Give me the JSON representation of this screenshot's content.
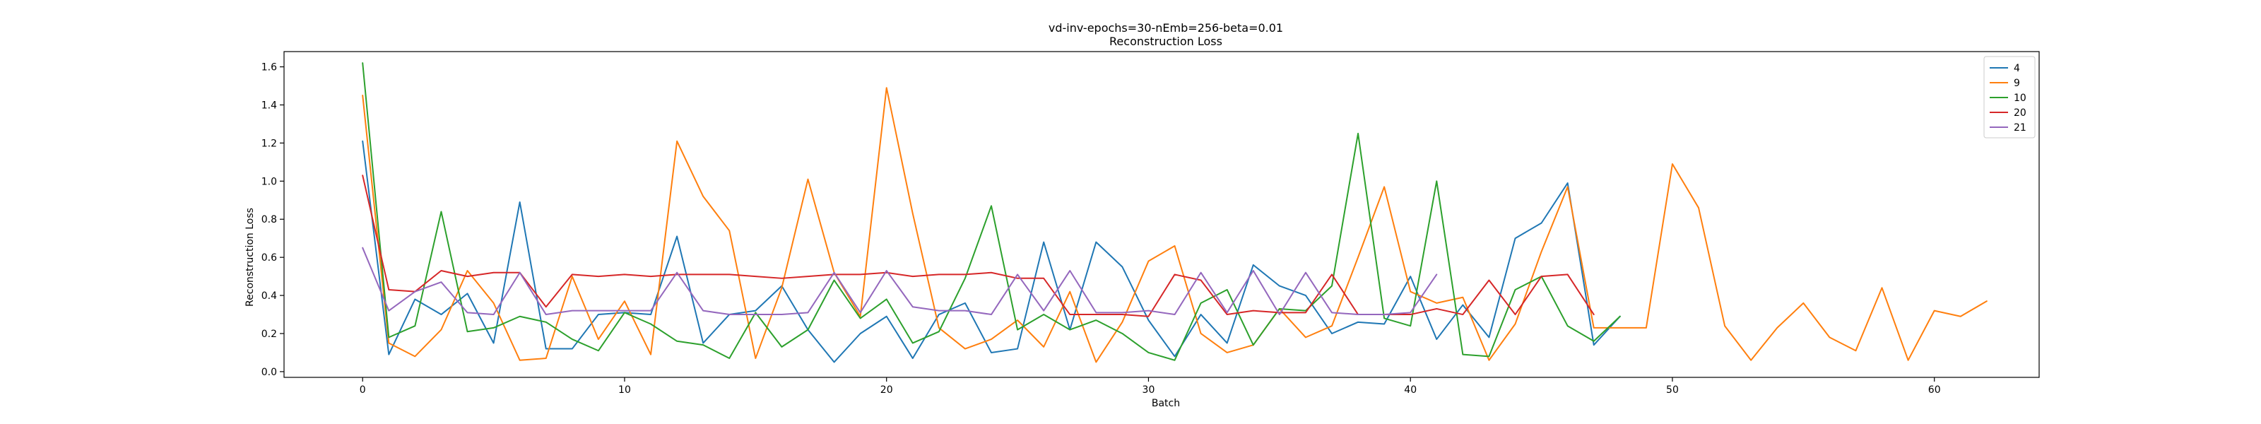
{
  "chart_data": {
    "type": "line",
    "title": "vd-inv-epochs=30-nEmb=256-beta=0.01",
    "subtitle": "Reconstruction Loss",
    "xlabel": "Batch",
    "ylabel": "Reconstruction Loss",
    "xlim": [
      -3,
      64
    ],
    "ylim": [
      -0.03,
      1.68
    ],
    "xticks": [
      0,
      10,
      20,
      30,
      40,
      50,
      60
    ],
    "yticks": [
      0.0,
      0.2,
      0.4,
      0.6,
      0.8,
      1.0,
      1.2,
      1.4,
      1.6
    ],
    "grid": false,
    "legend_position": "top-right",
    "series": [
      {
        "name": "4",
        "color": "#1f77b4",
        "values": [
          1.21,
          0.09,
          0.38,
          0.3,
          0.41,
          0.15,
          0.89,
          0.12,
          0.12,
          0.3,
          0.31,
          0.3,
          0.71,
          0.15,
          0.3,
          0.32,
          0.45,
          0.22,
          0.05,
          0.2,
          0.29,
          0.07,
          0.3,
          0.36,
          0.1,
          0.12,
          0.68,
          0.22,
          0.68,
          0.55,
          0.27,
          0.08,
          0.3,
          0.15,
          0.56,
          0.45,
          0.4,
          0.2,
          0.26,
          0.25,
          0.5,
          0.17,
          0.35,
          0.18,
          0.7,
          0.78,
          0.99,
          0.14,
          0.29
        ]
      },
      {
        "name": "9",
        "color": "#ff7f0e",
        "values": [
          1.45,
          0.15,
          0.08,
          0.22,
          0.53,
          0.36,
          0.06,
          0.07,
          0.5,
          0.17,
          0.37,
          0.09,
          1.21,
          0.92,
          0.74,
          0.07,
          0.44,
          1.01,
          0.52,
          0.29,
          1.49,
          0.83,
          0.23,
          0.12,
          0.17,
          0.27,
          0.13,
          0.42,
          0.05,
          0.26,
          0.58,
          0.66,
          0.2,
          0.1,
          0.14,
          0.33,
          0.18,
          0.24,
          0.6,
          0.97,
          0.42,
          0.36,
          0.39,
          0.06,
          0.25,
          0.63,
          0.97,
          0.23,
          0.23,
          0.23,
          1.09,
          0.86,
          0.24,
          0.06,
          0.23,
          0.36,
          0.18,
          0.11,
          0.44,
          0.06,
          0.32,
          0.29,
          0.37
        ]
      },
      {
        "name": "10",
        "color": "#2ca02c",
        "values": [
          1.62,
          0.18,
          0.24,
          0.84,
          0.21,
          0.23,
          0.29,
          0.26,
          0.17,
          0.11,
          0.31,
          0.25,
          0.16,
          0.14,
          0.07,
          0.31,
          0.13,
          0.22,
          0.48,
          0.28,
          0.38,
          0.15,
          0.21,
          0.49,
          0.87,
          0.22,
          0.3,
          0.22,
          0.27,
          0.2,
          0.1,
          0.06,
          0.36,
          0.43,
          0.14,
          0.33,
          0.32,
          0.45,
          1.25,
          0.28,
          0.24,
          1.0,
          0.09,
          0.08,
          0.43,
          0.5,
          0.24,
          0.16,
          0.29
        ]
      },
      {
        "name": "20",
        "color": "#d62728",
        "values": [
          1.03,
          0.43,
          0.42,
          0.53,
          0.5,
          0.52,
          0.52,
          0.34,
          0.51,
          0.5,
          0.51,
          0.5,
          0.51,
          0.51,
          0.51,
          0.5,
          0.49,
          0.5,
          0.51,
          0.51,
          0.52,
          0.5,
          0.51,
          0.51,
          0.52,
          0.49,
          0.49,
          0.3,
          0.3,
          0.3,
          0.29,
          0.51,
          0.48,
          0.3,
          0.32,
          0.31,
          0.31,
          0.51,
          0.3,
          0.3,
          0.3,
          0.33,
          0.3,
          0.48,
          0.3,
          0.5,
          0.51,
          0.3
        ]
      },
      {
        "name": "21",
        "color": "#9467bd",
        "values": [
          0.65,
          0.32,
          0.42,
          0.47,
          0.31,
          0.3,
          0.52,
          0.3,
          0.32,
          0.32,
          0.32,
          0.32,
          0.52,
          0.32,
          0.3,
          0.3,
          0.3,
          0.31,
          0.52,
          0.31,
          0.53,
          0.34,
          0.32,
          0.32,
          0.3,
          0.51,
          0.32,
          0.53,
          0.31,
          0.31,
          0.32,
          0.3,
          0.52,
          0.31,
          0.53,
          0.3,
          0.52,
          0.31,
          0.3,
          0.3,
          0.31,
          0.51
        ]
      }
    ]
  }
}
